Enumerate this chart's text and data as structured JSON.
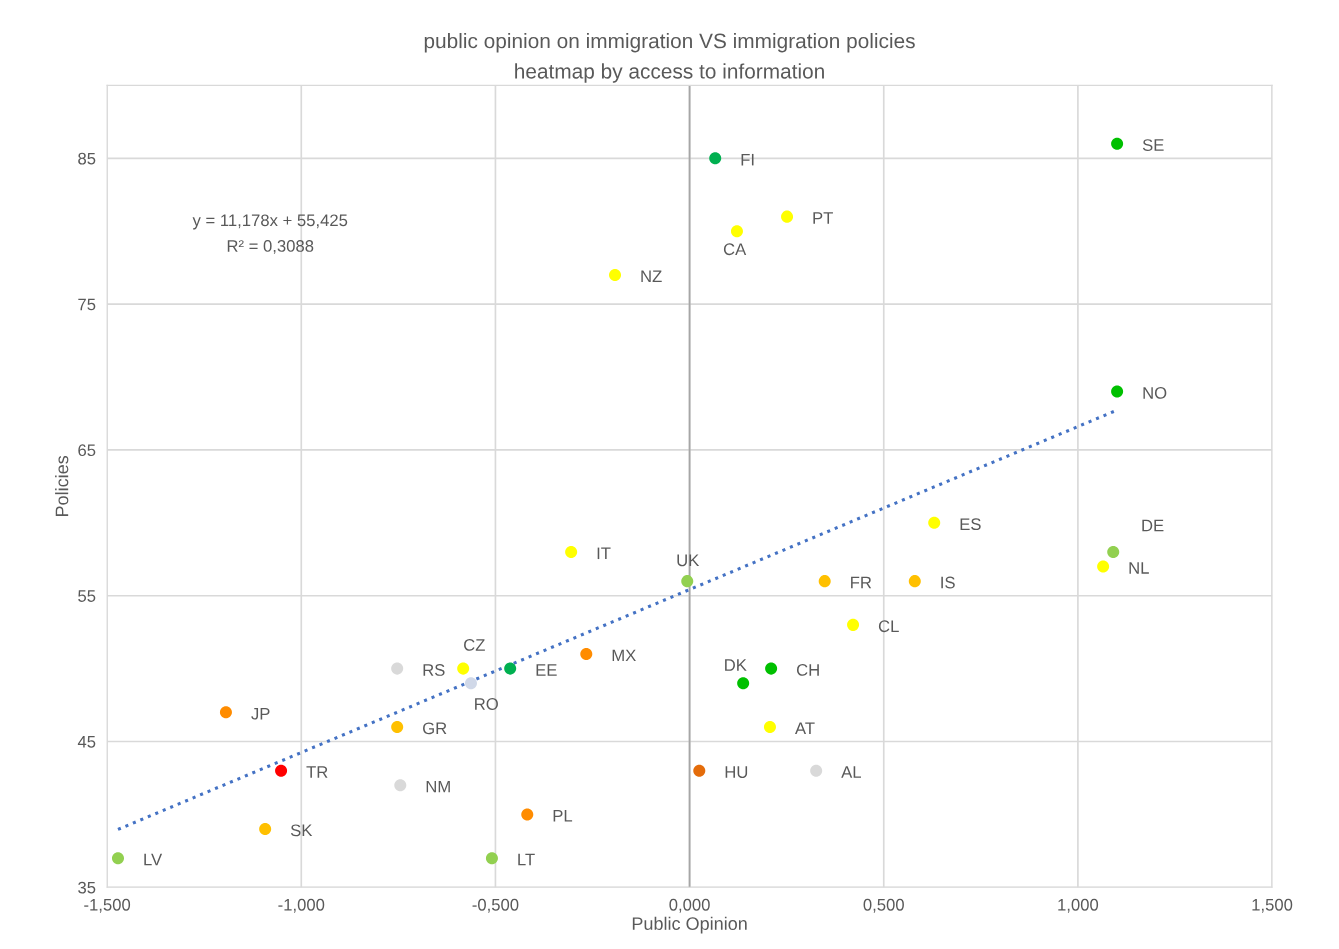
{
  "chart_data": {
    "type": "scatter",
    "title": "public opinion on immigration VS immigration policies",
    "subtitle": "heatmap by access to information",
    "xlabel": "Public Opinion",
    "ylabel": "Policies",
    "xlim": [
      -1.5,
      1.5
    ],
    "xticks": [
      {
        "value": -1.5,
        "label": "-1,500"
      },
      {
        "value": -1.0,
        "label": "-1,000"
      },
      {
        "value": -0.5,
        "label": "-0,500"
      },
      {
        "value": 0,
        "label": "0,000"
      },
      {
        "value": 0.5,
        "label": "0,500"
      },
      {
        "value": 1.0,
        "label": "1,000"
      },
      {
        "value": 1.5,
        "label": "1,500"
      }
    ],
    "ylim": [
      35,
      90
    ],
    "yticks": [
      35,
      45,
      55,
      65,
      75,
      85
    ],
    "grid": true,
    "marker": "circle",
    "ref_lines": [
      {
        "axis": "x",
        "value": 0,
        "color": "#a6a6a6"
      }
    ],
    "series": [
      {
        "x": [
          1.101,
          0.066,
          0.251,
          0.122,
          -0.192,
          1.101,
          0.63,
          1.091,
          1.065,
          -0.305,
          -0.006,
          0.348,
          0.58,
          0.421,
          -0.266,
          -0.583,
          -0.753,
          -0.462,
          -0.563,
          0.21,
          0.138,
          -1.194,
          -0.753,
          0.207,
          -1.052,
          0.025,
          0.326,
          -0.745,
          -0.418,
          -1.093,
          -1.472,
          -0.509
        ],
        "values": [
          86,
          85,
          81,
          80,
          77,
          69,
          60,
          58,
          57,
          58,
          56,
          56,
          56,
          53,
          51,
          50,
          50,
          50,
          49,
          50,
          49,
          47,
          46,
          46,
          43,
          43,
          43,
          42,
          40,
          39,
          37,
          37
        ],
        "colors": [
          "#00c000",
          "#00b050",
          "#ffff00",
          "#ffff00",
          "#ffff00",
          "#00c000",
          "#ffff00",
          "#92d050",
          "#ffff00",
          "#ffff00",
          "#92d050",
          "#ffc000",
          "#ffc000",
          "#ffff00",
          "#ff8c00",
          "#ffff00",
          "#d9d9d9",
          "#00b050",
          "#d0d8e8",
          "#00c000",
          "#00c000",
          "#ff8c00",
          "#ffc000",
          "#ffff00",
          "#ff0000",
          "#e46c0a",
          "#d9d9d9",
          "#d9d9d9",
          "#ff8c00",
          "#ffc000",
          "#92d050",
          "#92d050"
        ]
      },
      {
        "type": "line",
        "line_style": "dotted",
        "color": "#4472c4",
        "marker": "none",
        "x": [
          -1.472,
          1.101
        ],
        "values": [
          38.97,
          67.73
        ]
      }
    ],
    "annotations": [
      {
        "text": "SE",
        "x": 1.101,
        "y": 86
      },
      {
        "text": "FI",
        "x": 0.066,
        "y": 85
      },
      {
        "text": "PT",
        "x": 0.251,
        "y": 81
      },
      {
        "text": "CA",
        "x": 0.122,
        "y": 80
      },
      {
        "text": "NZ",
        "x": -0.192,
        "y": 77
      },
      {
        "text": "NO",
        "x": 1.101,
        "y": 69
      },
      {
        "text": "ES",
        "x": 0.63,
        "y": 60
      },
      {
        "text": "DE",
        "x": 1.091,
        "y": 58
      },
      {
        "text": "NL",
        "x": 1.065,
        "y": 57
      },
      {
        "text": "IT",
        "x": -0.305,
        "y": 58
      },
      {
        "text": "UK",
        "x": -0.006,
        "y": 56
      },
      {
        "text": "FR",
        "x": 0.348,
        "y": 56
      },
      {
        "text": "IS",
        "x": 0.58,
        "y": 56
      },
      {
        "text": "CL",
        "x": 0.421,
        "y": 53
      },
      {
        "text": "MX",
        "x": -0.266,
        "y": 51
      },
      {
        "text": "CZ",
        "x": -0.583,
        "y": 50
      },
      {
        "text": "RS",
        "x": -0.753,
        "y": 50
      },
      {
        "text": "EE",
        "x": -0.462,
        "y": 50
      },
      {
        "text": "RO",
        "x": -0.563,
        "y": 49
      },
      {
        "text": "CH",
        "x": 0.21,
        "y": 50
      },
      {
        "text": "DK",
        "x": 0.138,
        "y": 49
      },
      {
        "text": "JP",
        "x": -1.194,
        "y": 47
      },
      {
        "text": "GR",
        "x": -0.753,
        "y": 46
      },
      {
        "text": "AT",
        "x": 0.207,
        "y": 46
      },
      {
        "text": "TR",
        "x": -1.052,
        "y": 43
      },
      {
        "text": "HU",
        "x": 0.025,
        "y": 43
      },
      {
        "text": "AL",
        "x": 0.326,
        "y": 43
      },
      {
        "text": "NM",
        "x": -0.745,
        "y": 42
      },
      {
        "text": "PL",
        "x": -0.418,
        "y": 40
      },
      {
        "text": "SK",
        "x": -1.093,
        "y": 39
      },
      {
        "text": "LV",
        "x": -1.472,
        "y": 37
      },
      {
        "text": "LT",
        "x": -0.509,
        "y": 37
      },
      "y = 11,178x + 55,425",
      "R² = 0,3088"
    ]
  }
}
